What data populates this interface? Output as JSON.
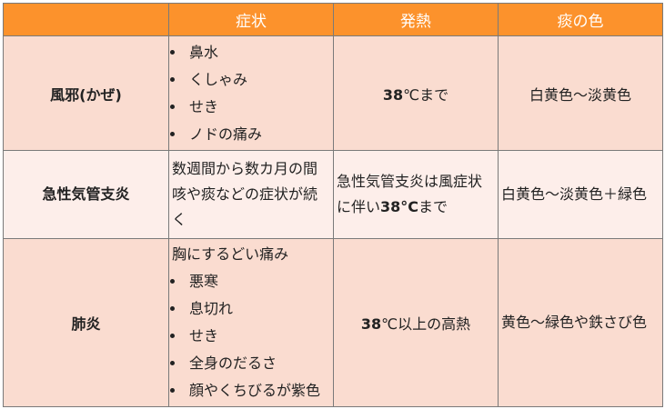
{
  "header": {
    "blank": "",
    "symptoms": "症状",
    "fever": "発熱",
    "phlegm_color": "痰の色"
  },
  "rows": [
    {
      "name": "風邪(かぜ)",
      "symptoms_items": [
        "鼻水",
        "くしゃみ",
        "せき",
        "ノドの痛み"
      ],
      "fever_bold": "38",
      "fever_rest": "℃まで",
      "phlegm": "白黄色～淡黄色"
    },
    {
      "name": "急性気管支炎",
      "symptoms_text": "数週間から数カ月の間咳や痰などの症状が続く",
      "fever_pre": "急性気管支炎は風症状に伴い",
      "fever_bold": "38°C",
      "fever_post": "まで",
      "phlegm": "白黄色～淡黄色＋緑色"
    },
    {
      "name": "肺炎",
      "symptoms_intro": "胸にするどい痛み",
      "symptoms_items": [
        "悪寒",
        "息切れ",
        "せき",
        "全身のだるさ",
        "顔やくちびるが紫色"
      ],
      "fever_bold": "38",
      "fever_rest": "℃以上の高熱",
      "phlegm": "黄色～緑色や鉄さび色"
    }
  ]
}
